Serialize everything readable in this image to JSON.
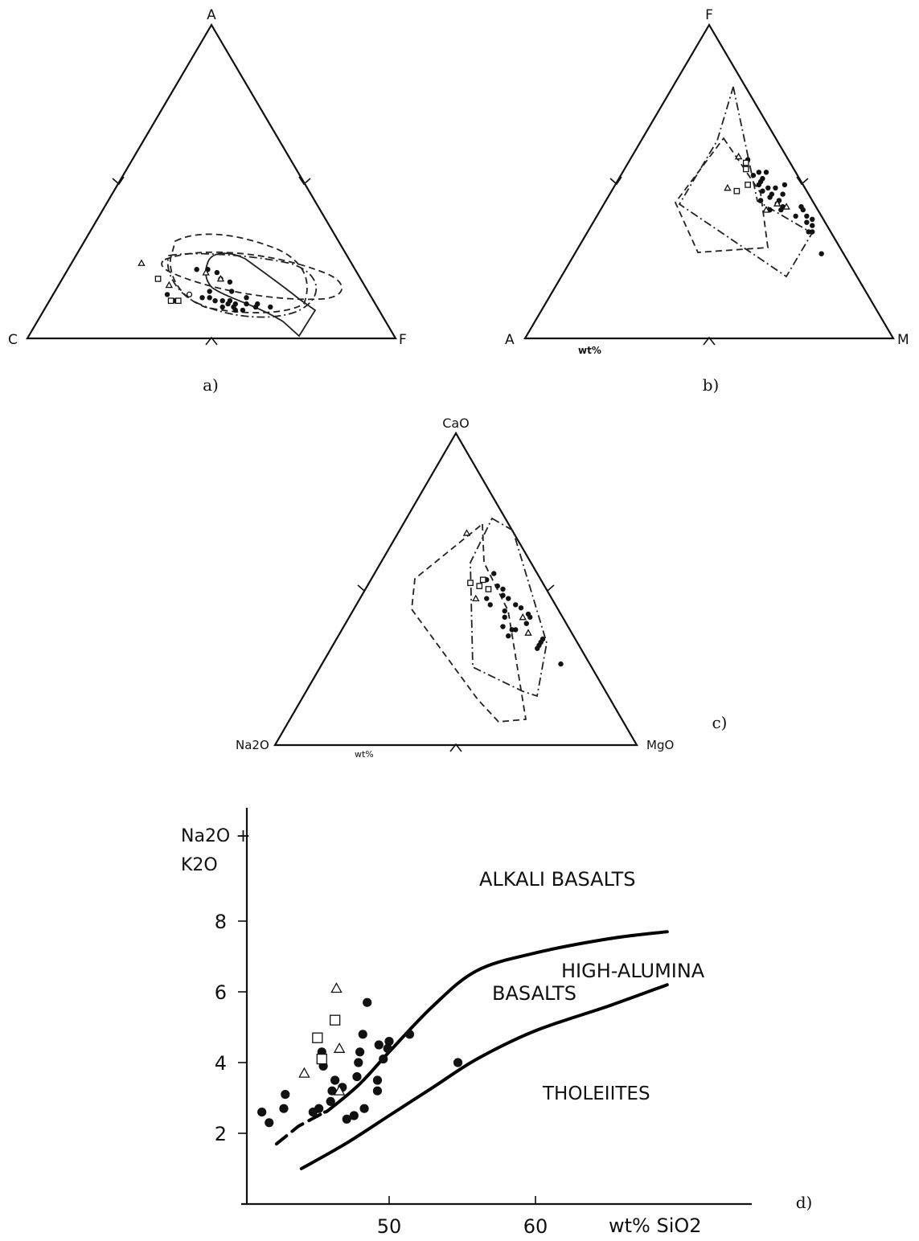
{
  "panels": {
    "a": {
      "caption": "a)",
      "apex_labels": {
        "top": "A",
        "left": "C",
        "right": "F"
      },
      "outline_color": "#111111"
    },
    "b": {
      "caption": "b)",
      "apex_labels": {
        "top": "F",
        "left": "A",
        "right": "M"
      },
      "unit_label": "wt%"
    },
    "c": {
      "caption": "c)",
      "apex_labels": {
        "top": "CaO",
        "left": "Na2O",
        "right": "MgO"
      },
      "unit_label": "wt%"
    },
    "d": {
      "caption": "d)",
      "ylabel_line1": "Na2O +",
      "ylabel_line2": "K2O",
      "xlabel": "wt% SiO2",
      "regions": {
        "alkali": "ALKALI BASALTS",
        "high_alumina_1": "HIGH-ALUMINA",
        "high_alumina_2": "BASALTS",
        "tholeiites": "THOLEIITES"
      }
    }
  },
  "chart_data": [
    {
      "type": "scatter",
      "panel": "a",
      "kind": "ternary",
      "apexes": [
        "A",
        "C",
        "F"
      ],
      "series": [
        {
          "marker": "filled-circle",
          "points": [
            [
              0.22,
              0.43,
              0.35
            ],
            [
              0.22,
              0.4,
              0.38
            ],
            [
              0.21,
              0.38,
              0.41
            ],
            [
              0.19,
              0.38,
              0.43
            ],
            [
              0.15,
              0.43,
              0.42
            ],
            [
              0.13,
              0.46,
              0.41
            ],
            [
              0.13,
              0.44,
              0.43
            ],
            [
              0.12,
              0.43,
              0.45
            ],
            [
              0.12,
              0.41,
              0.47
            ],
            [
              0.12,
              0.39,
              0.49
            ],
            [
              0.11,
              0.4,
              0.49
            ],
            [
              0.11,
              0.38,
              0.51
            ],
            [
              0.11,
              0.35,
              0.54
            ],
            [
              0.1,
              0.42,
              0.48
            ],
            [
              0.1,
              0.39,
              0.51
            ],
            [
              0.09,
              0.39,
              0.52
            ],
            [
              0.09,
              0.37,
              0.54
            ],
            [
              0.1,
              0.33,
              0.57
            ],
            [
              0.1,
              0.29,
              0.61
            ],
            [
              0.15,
              0.37,
              0.48
            ],
            [
              0.13,
              0.34,
              0.53
            ],
            [
              0.14,
              0.55,
              0.31
            ],
            [
              0.12,
              0.54,
              0.34
            ],
            [
              0.18,
              0.36,
              0.46
            ],
            [
              0.11,
              0.32,
              0.57
            ]
          ]
        },
        {
          "marker": "open-triangle",
          "points": [
            [
              0.24,
              0.57,
              0.19
            ],
            [
              0.21,
              0.41,
              0.38
            ],
            [
              0.19,
              0.38,
              0.43
            ],
            [
              0.17,
              0.53,
              0.3
            ]
          ]
        },
        {
          "marker": "open-square",
          "points": [
            [
              0.19,
              0.55,
              0.26
            ],
            [
              0.12,
              0.55,
              0.33
            ],
            [
              0.12,
              0.53,
              0.35
            ]
          ]
        },
        {
          "marker": "open-circle",
          "points": [
            [
              0.14,
              0.49,
              0.37
            ]
          ]
        }
      ]
    },
    {
      "type": "scatter",
      "panel": "b",
      "kind": "ternary",
      "apexes": [
        "F",
        "A",
        "M"
      ],
      "series": [
        {
          "marker": "filled-circle",
          "points": [
            [
              0.57,
              0.11,
              0.32
            ],
            [
              0.52,
              0.12,
              0.36
            ],
            [
              0.53,
              0.1,
              0.37
            ],
            [
              0.51,
              0.1,
              0.39
            ],
            [
              0.5,
              0.11,
              0.39
            ],
            [
              0.49,
              0.12,
              0.39
            ],
            [
              0.48,
              0.1,
              0.42
            ],
            [
              0.47,
              0.12,
              0.41
            ],
            [
              0.46,
              0.1,
              0.44
            ],
            [
              0.45,
              0.11,
              0.44
            ],
            [
              0.44,
              0.09,
              0.47
            ],
            [
              0.43,
              0.1,
              0.47
            ],
            [
              0.42,
              0.09,
              0.49
            ],
            [
              0.41,
              0.1,
              0.49
            ],
            [
              0.48,
              0.08,
              0.44
            ],
            [
              0.46,
              0.07,
              0.47
            ],
            [
              0.39,
              0.07,
              0.54
            ],
            [
              0.34,
              0.06,
              0.6
            ],
            [
              0.53,
              0.08,
              0.39
            ],
            [
              0.49,
              0.05,
              0.46
            ],
            [
              0.42,
              0.04,
              0.54
            ],
            [
              0.41,
              0.04,
              0.55
            ],
            [
              0.39,
              0.04,
              0.57
            ],
            [
              0.38,
              0.03,
              0.59
            ],
            [
              0.36,
              0.04,
              0.6
            ],
            [
              0.37,
              0.05,
              0.58
            ],
            [
              0.34,
              0.05,
              0.61
            ],
            [
              0.27,
              0.06,
              0.67
            ],
            [
              0.41,
              0.13,
              0.46
            ],
            [
              0.44,
              0.14,
              0.42
            ]
          ]
        },
        {
          "marker": "open-triangle",
          "points": [
            [
              0.58,
              0.13,
              0.29
            ],
            [
              0.48,
              0.21,
              0.31
            ],
            [
              0.41,
              0.14,
              0.45
            ],
            [
              0.43,
              0.1,
              0.47
            ],
            [
              0.42,
              0.08,
              0.5
            ]
          ]
        },
        {
          "marker": "open-square",
          "points": [
            [
              0.56,
              0.12,
              0.32
            ],
            [
              0.54,
              0.13,
              0.33
            ],
            [
              0.47,
              0.19,
              0.34
            ],
            [
              0.49,
              0.15,
              0.36
            ]
          ]
        }
      ]
    },
    {
      "type": "scatter",
      "panel": "c",
      "kind": "ternary",
      "apexes": [
        "CaO",
        "Na2O",
        "MgO"
      ],
      "series": [
        {
          "marker": "filled-circle",
          "points": [
            [
              0.55,
              0.12,
              0.33
            ],
            [
              0.51,
              0.13,
              0.36
            ],
            [
              0.5,
              0.12,
              0.38
            ],
            [
              0.48,
              0.13,
              0.39
            ],
            [
              0.47,
              0.12,
              0.41
            ],
            [
              0.47,
              0.18,
              0.35
            ],
            [
              0.45,
              0.18,
              0.37
            ],
            [
              0.45,
              0.11,
              0.44
            ],
            [
              0.44,
              0.1,
              0.46
            ],
            [
              0.43,
              0.15,
              0.42
            ],
            [
              0.42,
              0.09,
              0.49
            ],
            [
              0.41,
              0.09,
              0.5
            ],
            [
              0.38,
              0.18,
              0.44
            ],
            [
              0.37,
              0.15,
              0.48
            ],
            [
              0.37,
              0.16,
              0.47
            ],
            [
              0.35,
              0.18,
              0.47
            ],
            [
              0.34,
              0.09,
              0.57
            ],
            [
              0.33,
              0.1,
              0.57
            ],
            [
              0.32,
              0.11,
              0.57
            ],
            [
              0.31,
              0.12,
              0.57
            ],
            [
              0.26,
              0.08,
              0.66
            ],
            [
              0.41,
              0.16,
              0.43
            ],
            [
              0.39,
              0.11,
              0.5
            ],
            [
              0.53,
              0.15,
              0.32
            ]
          ]
        },
        {
          "marker": "open-triangle",
          "points": [
            [
              0.68,
              0.13,
              0.19
            ],
            [
              0.47,
              0.21,
              0.32
            ],
            [
              0.41,
              0.11,
              0.48
            ],
            [
              0.36,
              0.12,
              0.52
            ]
          ]
        },
        {
          "marker": "open-square",
          "points": [
            [
              0.52,
              0.2,
              0.28
            ],
            [
              0.53,
              0.16,
              0.31
            ],
            [
              0.51,
              0.18,
              0.31
            ],
            [
              0.5,
              0.16,
              0.34
            ]
          ]
        }
      ]
    },
    {
      "type": "scatter",
      "panel": "d",
      "xlabel": "wt% SiO2",
      "ylabel": "Na2O + K2O",
      "xlim": [
        40,
        70
      ],
      "ylim": [
        0,
        11
      ],
      "x_ticks": [
        50,
        60
      ],
      "y_ticks": [
        2,
        4,
        6,
        8
      ],
      "series": [
        {
          "marker": "filled-circle",
          "points": [
            [
              41.3,
              2.6
            ],
            [
              41.8,
              2.3
            ],
            [
              42.8,
              2.7
            ],
            [
              42.9,
              3.1
            ],
            [
              44.8,
              2.6
            ],
            [
              45.2,
              2.7
            ],
            [
              45.4,
              4.3
            ],
            [
              45.5,
              3.9
            ],
            [
              46.0,
              2.9
            ],
            [
              46.1,
              3.2
            ],
            [
              46.3,
              3.5
            ],
            [
              46.8,
              3.3
            ],
            [
              47.1,
              2.4
            ],
            [
              47.6,
              2.5
            ],
            [
              47.8,
              3.6
            ],
            [
              47.9,
              4.0
            ],
            [
              48.0,
              4.3
            ],
            [
              48.2,
              4.8
            ],
            [
              48.3,
              2.7
            ],
            [
              48.5,
              5.7
            ],
            [
              49.2,
              3.5
            ],
            [
              49.2,
              3.2
            ],
            [
              49.3,
              4.5
            ],
            [
              49.6,
              4.1
            ],
            [
              49.9,
              4.4
            ],
            [
              50.0,
              4.6
            ],
            [
              51.4,
              4.8
            ],
            [
              54.7,
              4.0
            ]
          ]
        },
        {
          "marker": "open-triangle",
          "points": [
            [
              44.2,
              3.7
            ],
            [
              46.4,
              6.1
            ],
            [
              46.6,
              4.4
            ],
            [
              46.6,
              3.2
            ]
          ]
        },
        {
          "marker": "open-square",
          "points": [
            [
              45.1,
              4.7
            ],
            [
              45.4,
              4.1
            ],
            [
              46.3,
              5.2
            ]
          ]
        }
      ],
      "boundaries": [
        {
          "name": "alkali / high-alumina boundary",
          "points": [
            [
              43.8,
              2.2
            ],
            [
              46.0,
              2.7
            ],
            [
              48.0,
              3.4
            ],
            [
              50.0,
              4.3
            ],
            [
              53.0,
              5.6
            ],
            [
              56.0,
              6.6
            ],
            [
              60.0,
              7.1
            ],
            [
              65.0,
              7.5
            ],
            [
              69.0,
              7.7
            ]
          ],
          "dashed_until": 45.6
        },
        {
          "name": "high-alumina / tholeiite boundary",
          "points": [
            [
              44.0,
              1.0
            ],
            [
              47.0,
              1.7
            ],
            [
              50.0,
              2.5
            ],
            [
              53.0,
              3.3
            ],
            [
              56.0,
              4.1
            ],
            [
              60.0,
              4.9
            ],
            [
              65.0,
              5.6
            ],
            [
              69.0,
              6.2
            ]
          ],
          "dashed_until": null
        }
      ]
    }
  ]
}
